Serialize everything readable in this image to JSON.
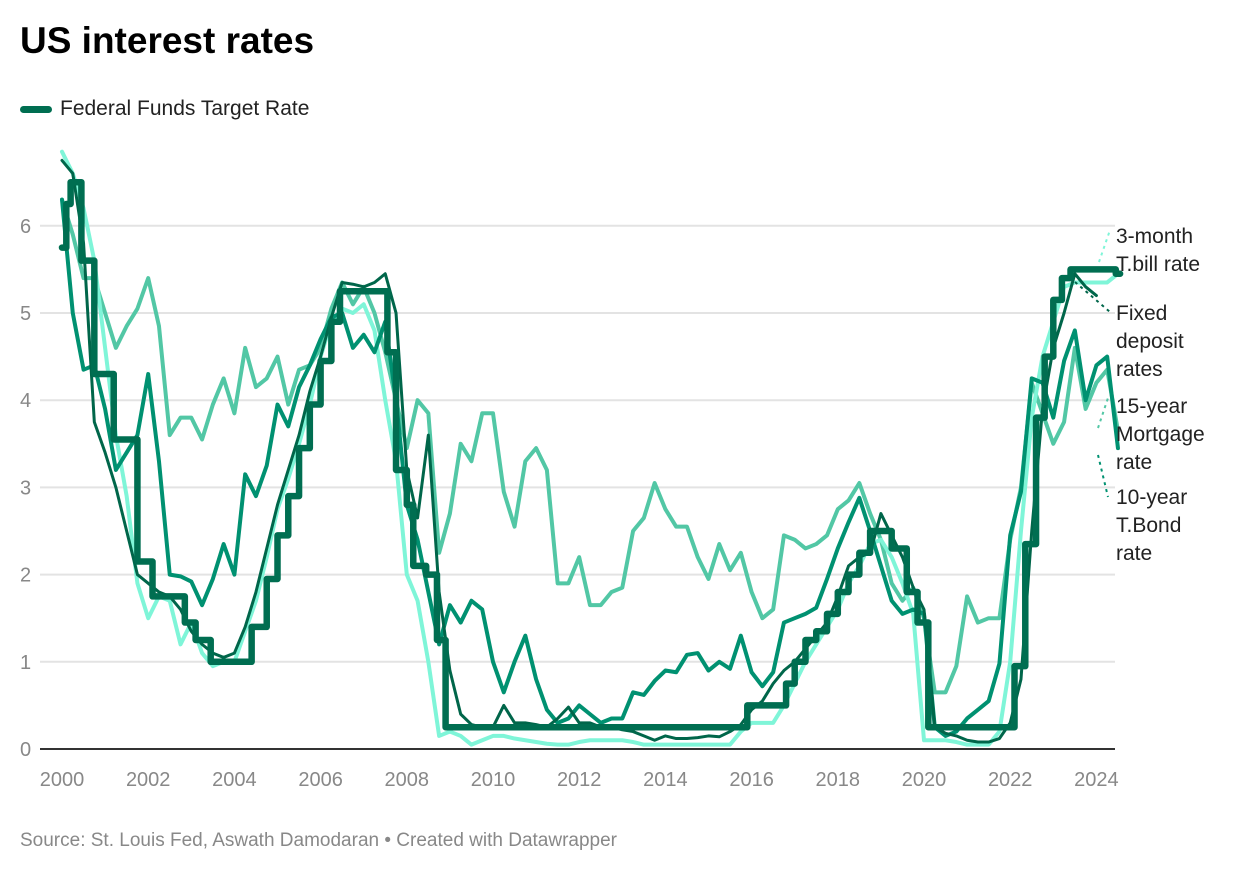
{
  "chart_data": {
    "type": "line",
    "title": "US interest rates",
    "source": "Source: St. Louis Fed, Aswath Damodaran • Created with Datawrapper",
    "legend": {
      "placement": "top-left",
      "entries": [
        "Federal Funds Target Rate"
      ]
    },
    "xlim": [
      2000,
      2024.75
    ],
    "ylim": [
      0,
      7
    ],
    "x_ticks": [
      "2000",
      "2002",
      "2004",
      "2006",
      "2008",
      "2010",
      "2012",
      "2014",
      "2016",
      "2018",
      "2020",
      "2022",
      "2024"
    ],
    "y_ticks": [
      "0",
      "1",
      "2",
      "3",
      "4",
      "5",
      "6"
    ],
    "grid": "horizontal",
    "series": [
      {
        "name": "15-year Mortgage rate",
        "label_lines": [
          "15-year",
          "Mortgage",
          "rate"
        ],
        "color": "#52c7a5",
        "style": "line",
        "start": 2000,
        "step": 0.25,
        "values": [
          6.3,
          5.9,
          5.4,
          5.4,
          5.0,
          4.6,
          4.85,
          5.05,
          5.4,
          4.85,
          3.6,
          3.8,
          3.8,
          3.55,
          3.95,
          4.25,
          3.85,
          4.6,
          4.15,
          4.25,
          4.5,
          3.95,
          4.35,
          4.4,
          4.6,
          5.05,
          5.35,
          5.1,
          5.3,
          5.0,
          4.55,
          4.0,
          3.45,
          4.0,
          3.85,
          2.25,
          2.7,
          3.5,
          3.3,
          3.85,
          3.85,
          2.95,
          2.55,
          3.3,
          3.45,
          3.2,
          1.9,
          1.9,
          2.2,
          1.65,
          1.65,
          1.8,
          1.85,
          2.5,
          2.65,
          3.05,
          2.75,
          2.55,
          2.55,
          2.2,
          1.95,
          2.35,
          2.05,
          2.25,
          1.8,
          1.5,
          1.6,
          2.45,
          2.4,
          2.3,
          2.35,
          2.45,
          2.75,
          2.85,
          3.05,
          2.7,
          2.4,
          1.9,
          1.7,
          1.85,
          1.5,
          0.65,
          0.65,
          0.95,
          1.75,
          1.45,
          1.5,
          1.5,
          2.4,
          3.0,
          4.2,
          3.85,
          3.5,
          3.75,
          4.6,
          3.9,
          4.2,
          4.35,
          3.65
        ]
      },
      {
        "name": "10-year T.Bond rate",
        "label_lines": [
          "10-year",
          "T.Bond",
          "rate"
        ],
        "color": "#009171",
        "style": "line",
        "start": 2000,
        "step": 0.25,
        "values": [
          6.3,
          5.0,
          4.35,
          4.4,
          3.9,
          3.2,
          3.4,
          3.6,
          4.3,
          3.3,
          2.0,
          1.98,
          1.92,
          1.65,
          1.95,
          2.35,
          2.0,
          3.15,
          2.9,
          3.25,
          3.95,
          3.7,
          4.15,
          4.4,
          4.7,
          4.95,
          5.0,
          4.6,
          4.75,
          4.55,
          4.9,
          4.0,
          2.8,
          2.4,
          1.8,
          1.2,
          1.65,
          1.45,
          1.7,
          1.6,
          1.0,
          0.65,
          1.0,
          1.3,
          0.8,
          0.45,
          0.3,
          0.35,
          0.5,
          0.4,
          0.3,
          0.35,
          0.35,
          0.65,
          0.62,
          0.78,
          0.9,
          0.88,
          1.08,
          1.1,
          0.9,
          1.0,
          0.92,
          1.3,
          0.88,
          0.72,
          0.88,
          1.45,
          1.5,
          1.55,
          1.62,
          1.95,
          2.3,
          2.6,
          2.88,
          2.5,
          2.1,
          1.7,
          1.55,
          1.6,
          1.55,
          0.25,
          0.15,
          0.2,
          0.35,
          0.45,
          0.55,
          0.98,
          2.45,
          2.95,
          4.25,
          4.2,
          3.8,
          4.45,
          4.8,
          4.0,
          4.4,
          4.5,
          3.45
        ]
      },
      {
        "name": "3-month T.bill rate",
        "label_lines": [
          "3-month",
          "T.bill rate"
        ],
        "color": "#7ff5d8",
        "style": "line",
        "start": 2000,
        "step": 0.25,
        "values": [
          6.85,
          6.6,
          6.2,
          5.6,
          4.6,
          3.6,
          2.9,
          1.9,
          1.5,
          1.75,
          1.7,
          1.2,
          1.45,
          1.1,
          0.95,
          1.0,
          1.0,
          1.35,
          1.7,
          2.2,
          2.75,
          3.1,
          3.5,
          3.95,
          4.5,
          4.9,
          5.05,
          5.0,
          5.1,
          4.8,
          4.0,
          3.3,
          2.0,
          1.7,
          1.0,
          0.15,
          0.2,
          0.15,
          0.05,
          0.1,
          0.15,
          0.15,
          0.12,
          0.1,
          0.08,
          0.06,
          0.05,
          0.05,
          0.08,
          0.1,
          0.1,
          0.1,
          0.1,
          0.08,
          0.05,
          0.05,
          0.05,
          0.05,
          0.05,
          0.05,
          0.05,
          0.05,
          0.05,
          0.2,
          0.3,
          0.3,
          0.3,
          0.5,
          0.75,
          1.0,
          1.2,
          1.4,
          1.6,
          1.9,
          2.1,
          2.35,
          2.4,
          2.2,
          1.9,
          1.55,
          0.1,
          0.1,
          0.1,
          0.08,
          0.05,
          0.05,
          0.05,
          0.2,
          1.0,
          2.5,
          3.8,
          4.5,
          4.9,
          5.3,
          5.35,
          5.35,
          5.35,
          5.35,
          5.45
        ]
      },
      {
        "name": "Fixed deposit rates",
        "label_lines": [
          "Fixed",
          "deposit",
          "rates"
        ],
        "color": "#00664a",
        "style": "line",
        "start": 2000,
        "step": 0.25,
        "values": [
          6.75,
          6.6,
          5.8,
          3.75,
          3.4,
          3.0,
          2.5,
          2.0,
          1.9,
          1.8,
          1.75,
          1.6,
          1.35,
          1.2,
          1.1,
          1.05,
          1.1,
          1.4,
          1.8,
          2.3,
          2.8,
          3.2,
          3.6,
          4.1,
          4.5,
          4.95,
          5.35,
          5.33,
          5.3,
          5.35,
          5.45,
          5.0,
          3.2,
          2.65,
          3.6,
          1.8,
          0.9,
          0.4,
          0.28,
          0.25,
          0.25,
          0.5,
          0.3,
          0.3,
          0.28,
          0.25,
          0.35,
          0.48,
          0.3,
          0.3,
          0.25,
          0.25,
          0.22,
          0.2,
          0.15,
          0.1,
          0.15,
          0.12,
          0.12,
          0.13,
          0.15,
          0.14,
          0.2,
          0.28,
          0.45,
          0.55,
          0.75,
          0.9,
          1.0,
          1.15,
          1.3,
          1.45,
          1.75,
          2.1,
          2.2,
          2.25,
          2.7,
          2.45,
          2.2,
          1.85,
          1.6,
          0.25,
          0.18,
          0.15,
          0.1,
          0.08,
          0.08,
          0.12,
          0.3,
          0.8,
          2.5,
          3.9,
          4.6,
          5.0,
          5.45,
          5.3,
          5.2
        ]
      },
      {
        "name": "Federal Funds Target Rate",
        "color": "#006e51",
        "style": "step",
        "points": [
          [
            2000,
            5.75
          ],
          [
            2000.1,
            6.25
          ],
          [
            2000.2,
            6.5
          ],
          [
            2000.45,
            5.6
          ],
          [
            2000.75,
            4.3
          ],
          [
            2001.0,
            4.3
          ],
          [
            2001.2,
            3.55
          ],
          [
            2001.6,
            3.55
          ],
          [
            2001.75,
            2.15
          ],
          [
            2002.1,
            1.75
          ],
          [
            2002.85,
            1.45
          ],
          [
            2003.1,
            1.25
          ],
          [
            2003.45,
            1.0
          ],
          [
            2004.4,
            1.4
          ],
          [
            2004.75,
            1.95
          ],
          [
            2005.0,
            2.45
          ],
          [
            2005.25,
            2.9
          ],
          [
            2005.5,
            3.45
          ],
          [
            2005.75,
            3.95
          ],
          [
            2006.0,
            4.45
          ],
          [
            2006.25,
            4.9
          ],
          [
            2006.45,
            5.25
          ],
          [
            2007.55,
            4.55
          ],
          [
            2007.75,
            3.2
          ],
          [
            2008.0,
            2.8
          ],
          [
            2008.15,
            2.1
          ],
          [
            2008.45,
            2.0
          ],
          [
            2008.7,
            1.25
          ],
          [
            2008.9,
            0.25
          ],
          [
            2015.9,
            0.5
          ],
          [
            2016.8,
            0.75
          ],
          [
            2017.0,
            1.0
          ],
          [
            2017.25,
            1.25
          ],
          [
            2017.5,
            1.35
          ],
          [
            2017.75,
            1.55
          ],
          [
            2018.0,
            1.8
          ],
          [
            2018.25,
            2.0
          ],
          [
            2018.5,
            2.25
          ],
          [
            2018.75,
            2.5
          ],
          [
            2019.25,
            2.3
          ],
          [
            2019.6,
            1.8
          ],
          [
            2019.85,
            1.45
          ],
          [
            2020.1,
            0.25
          ],
          [
            2022.1,
            0.95
          ],
          [
            2022.35,
            2.35
          ],
          [
            2022.6,
            3.8
          ],
          [
            2022.8,
            4.5
          ],
          [
            2023.0,
            5.15
          ],
          [
            2023.2,
            5.4
          ],
          [
            2023.4,
            5.5
          ],
          [
            2024.45,
            5.45
          ],
          [
            2024.55,
            5.45
          ]
        ]
      }
    ]
  }
}
